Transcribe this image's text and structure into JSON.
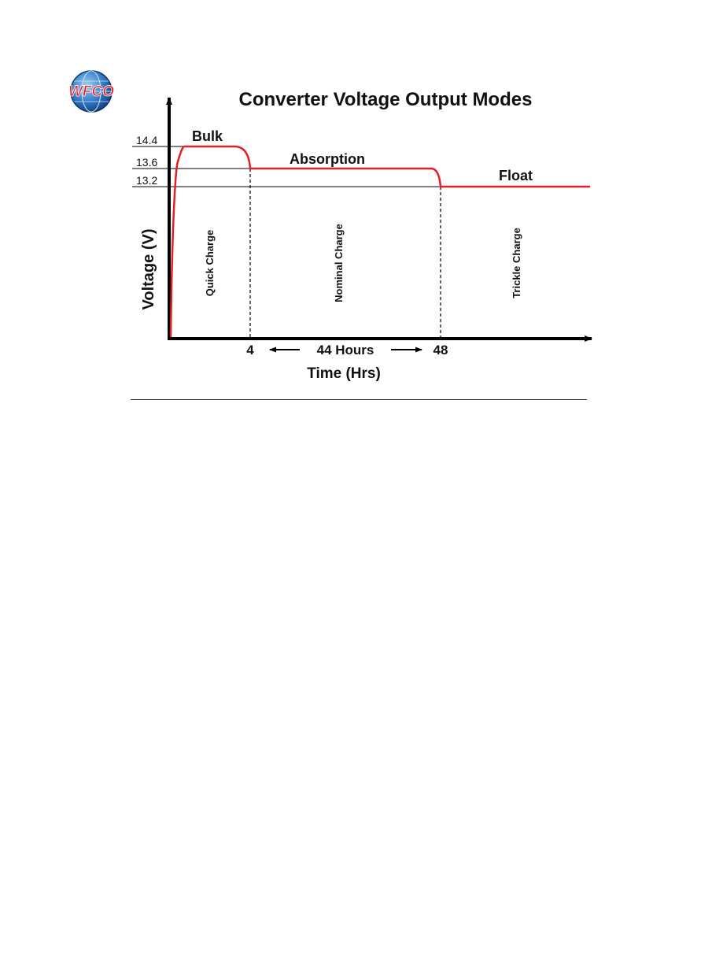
{
  "logo": {
    "text": "WFCO"
  },
  "chart_data": {
    "type": "line",
    "title": "Converter Voltage Output Modes",
    "xlabel": "Time (Hrs)",
    "ylabel": "Voltage (V)",
    "y_ticks": [
      "14.4",
      "13.6",
      "13.2"
    ],
    "x_ticks": [
      "4",
      "48"
    ],
    "span_label": "44 Hours",
    "phases": [
      "Bulk",
      "Absorption",
      "Float"
    ],
    "regions": [
      "Quick Charge",
      "Nominal Charge",
      "Trickle Charge"
    ],
    "series": [
      {
        "values": [
          {
            "x": 0,
            "y": 0
          },
          {
            "x": 0.3,
            "y": 13.8
          },
          {
            "x": 0.6,
            "y": 14.4
          },
          {
            "x": 3.0,
            "y": 14.4
          },
          {
            "x": 4,
            "y": 13.6
          },
          {
            "x": 47,
            "y": 13.6
          },
          {
            "x": 48,
            "y": 13.2
          },
          {
            "x": 70,
            "y": 13.2
          }
        ]
      }
    ],
    "line_color": "#e31e24",
    "grid": false
  }
}
